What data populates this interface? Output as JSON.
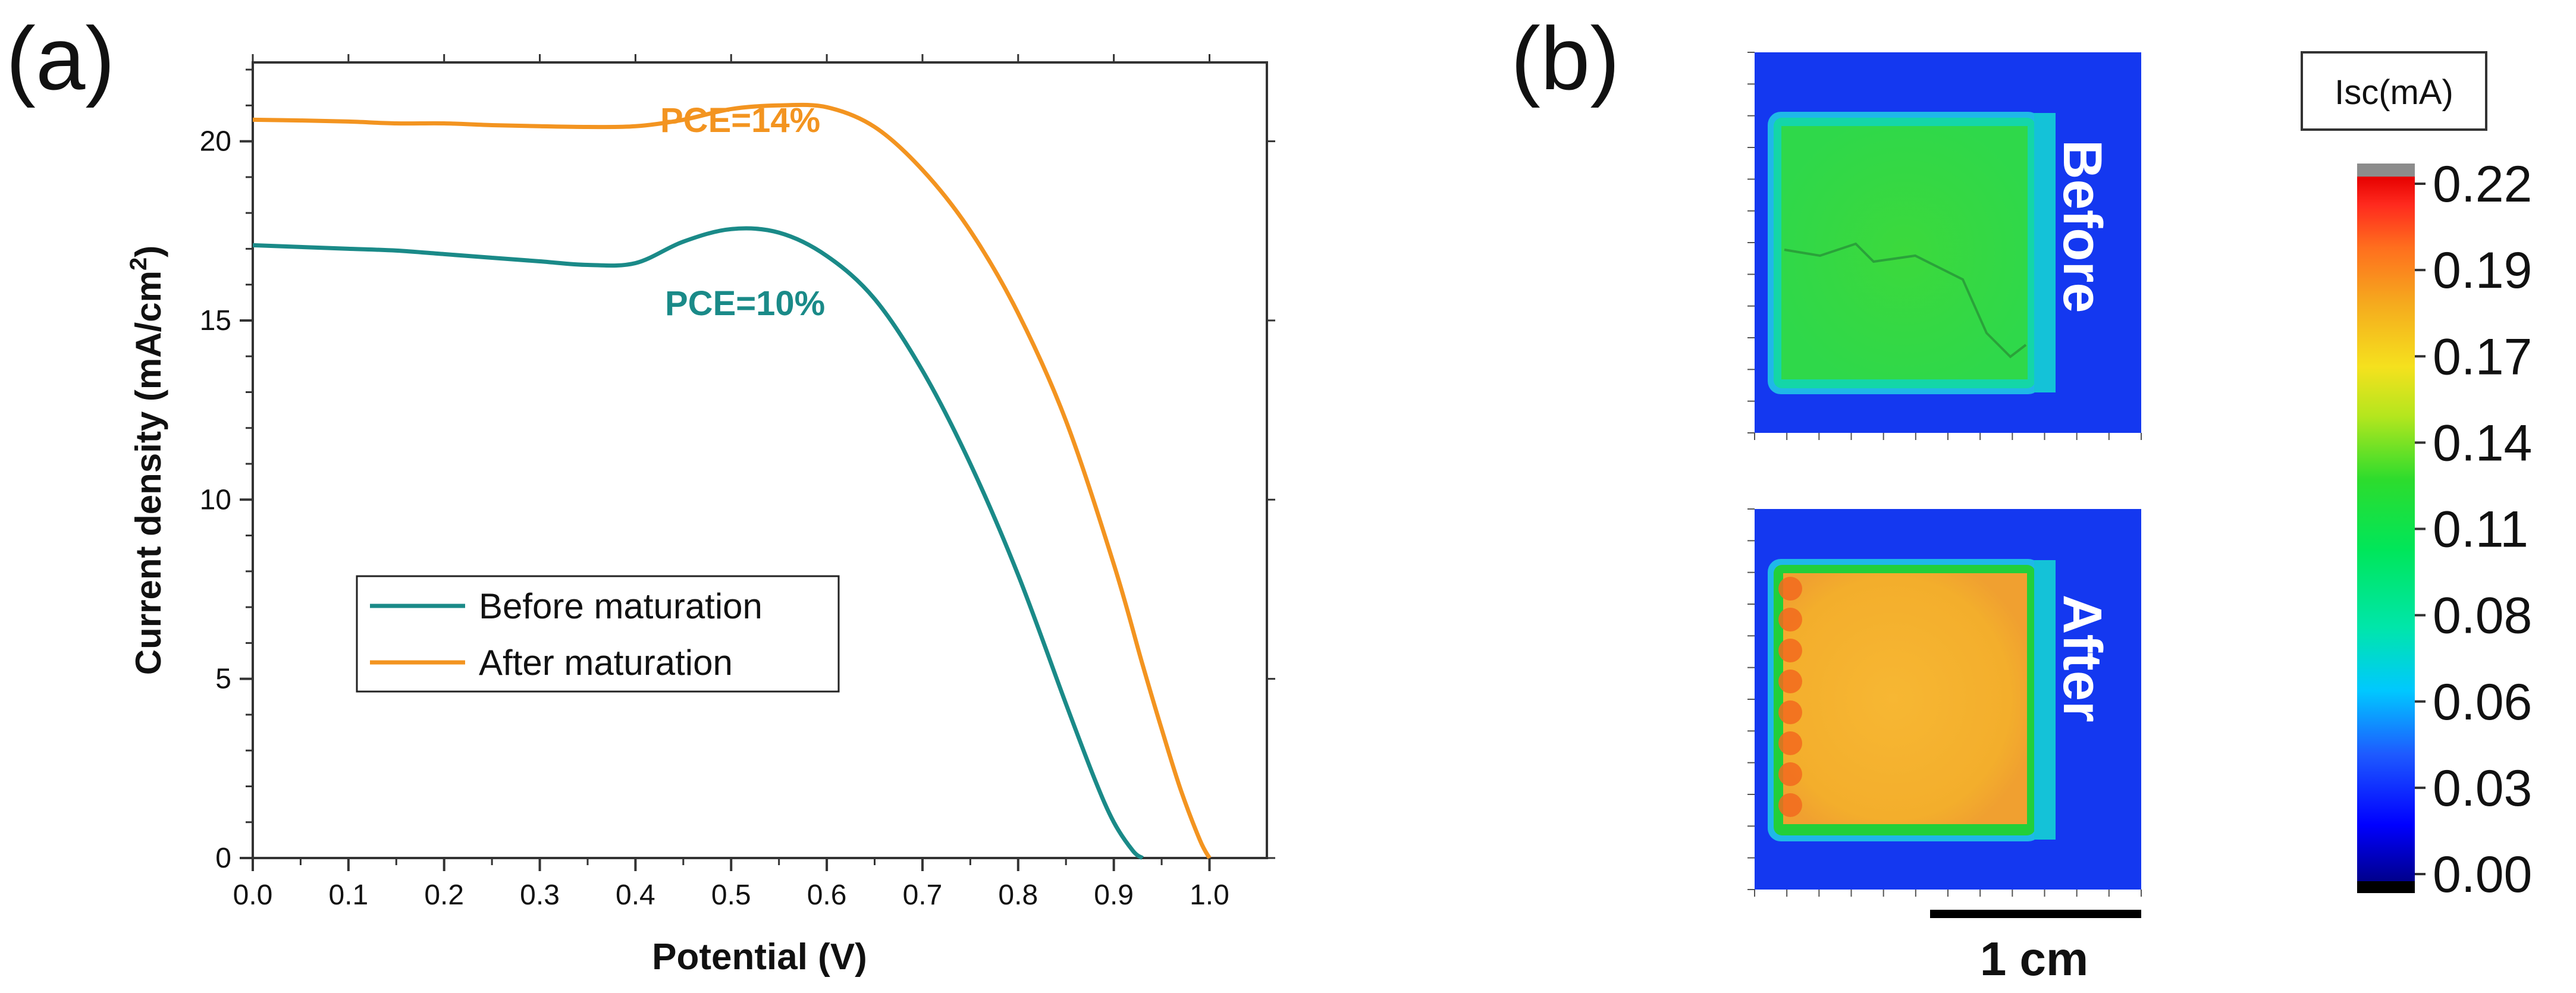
{
  "panel_a": {
    "label": "(a)"
  },
  "panel_b": {
    "label": "(b)",
    "map_top_label": "Before",
    "map_bottom_label": "After",
    "scale_bar_label": "1 cm"
  },
  "chart_data": [
    {
      "type": "line",
      "xlabel": "Potential (V)",
      "ylabel": "Current density (mA/cm2)",
      "xlim": [
        0.0,
        1.06
      ],
      "ylim": [
        0,
        22.2
      ],
      "xticks": [
        "0.0",
        "0.1",
        "0.2",
        "0.3",
        "0.4",
        "0.5",
        "0.6",
        "0.7",
        "0.8",
        "0.9",
        "1.0"
      ],
      "yticks": [
        "0",
        "5",
        "10",
        "15",
        "20"
      ],
      "grid": false,
      "legend_position": "middle-left",
      "series": [
        {
          "name": "Before maturation",
          "color": "#1a8a88",
          "annotation": "PCE=10%",
          "x": [
            0.0,
            0.05,
            0.1,
            0.15,
            0.2,
            0.25,
            0.3,
            0.35,
            0.4,
            0.45,
            0.5,
            0.55,
            0.6,
            0.65,
            0.7,
            0.75,
            0.8,
            0.85,
            0.88,
            0.9,
            0.92,
            0.93
          ],
          "y": [
            17.1,
            17.05,
            17.0,
            16.95,
            16.85,
            16.75,
            16.65,
            16.55,
            16.6,
            17.2,
            17.55,
            17.45,
            16.8,
            15.6,
            13.6,
            11.0,
            7.9,
            4.3,
            2.2,
            1.0,
            0.2,
            0.0
          ]
        },
        {
          "name": "After maturation",
          "color": "#f39420",
          "annotation": "PCE=14%",
          "x": [
            0.0,
            0.05,
            0.1,
            0.15,
            0.2,
            0.25,
            0.3,
            0.35,
            0.4,
            0.45,
            0.5,
            0.55,
            0.6,
            0.65,
            0.7,
            0.75,
            0.8,
            0.85,
            0.9,
            0.93,
            0.95,
            0.97,
            0.99,
            1.0
          ],
          "y": [
            20.6,
            20.58,
            20.55,
            20.5,
            20.5,
            20.45,
            20.42,
            20.4,
            20.42,
            20.6,
            20.9,
            21.0,
            20.95,
            20.4,
            19.2,
            17.5,
            15.2,
            12.2,
            8.2,
            5.4,
            3.6,
            1.9,
            0.5,
            0.0
          ]
        }
      ]
    },
    {
      "type": "heatmap",
      "colorbar_title": "Isc(mA)",
      "colorbar_ticks": [
        "0.22",
        "0.19",
        "0.17",
        "0.14",
        "0.11",
        "0.08",
        "0.06",
        "0.03",
        "0.00"
      ],
      "colorbar_range": [
        0.0,
        0.22
      ],
      "colorbar_colors": [
        "#00008c",
        "#0000ff",
        "#1e78ff",
        "#00e1ff",
        "#00e676",
        "#1ed21e",
        "#dcdc00",
        "#f5c81e",
        "#ff8c1e",
        "#ff3c28",
        "#e60000"
      ],
      "maps": [
        {
          "name": "Before",
          "approx_interior_Isc": 0.13
        },
        {
          "name": "After",
          "approx_interior_Isc": 0.18
        }
      ]
    }
  ]
}
